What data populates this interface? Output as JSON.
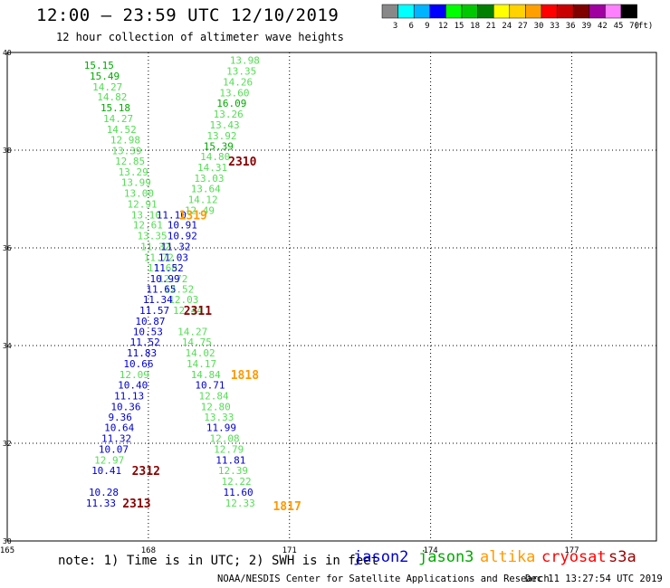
{
  "title": "12:00 – 23:59 UTC 12/10/2019",
  "subtitle": "12 hour collection of altimeter wave heights",
  "colorbar": {
    "labels": [
      "3",
      "6",
      "9",
      "12",
      "15",
      "18",
      "21",
      "24",
      "27",
      "30",
      "33",
      "36",
      "39",
      "42",
      "45",
      "70"
    ],
    "unit": "(ft)",
    "colors": [
      "#888888",
      "#00ffff",
      "#00b4ff",
      "#0000ff",
      "#00ff00",
      "#00c800",
      "#008000",
      "#ffff00",
      "#ffd200",
      "#ffa000",
      "#ff0000",
      "#c80000",
      "#800000",
      "#a000a0",
      "#ff80ff",
      "#000000"
    ]
  },
  "map": {
    "lon_ticks": [
      "165",
      "168",
      "171",
      "174",
      "177"
    ],
    "lat_ticks": [
      "40",
      "38",
      "36",
      "34",
      "32",
      "30"
    ]
  },
  "colors": {
    "jason2": "#0000cc",
    "jason3": "#00aa00",
    "altika": "#ff9900",
    "cryosat": "#ff0000",
    "s3a": "#990000",
    "green_light": "#55dd55",
    "green_dark": "#00aa00",
    "blue": "#0000cc",
    "orange": "#ff9900",
    "maroon": "#880000"
  },
  "note": "note: 1) Time is in UTC; 2) SWH is in feet",
  "legend": {
    "jason2": "jason2",
    "jason3": "jason3",
    "altika": "altika",
    "cryosat": "cryosat",
    "s3a": "s3a"
  },
  "footer": {
    "center": "NOAA/NESDIS Center for Satellite Applications and Research",
    "date": "Dec 11 13:27:54 UTC 2019"
  },
  "observations": [
    {
      "t": "15.15",
      "lon": 166.95,
      "lat": 39.74,
      "c": "green_dark"
    },
    {
      "t": "15.49",
      "lon": 167.07,
      "lat": 39.52,
      "c": "green_dark"
    },
    {
      "t": "14.27",
      "lon": 167.13,
      "lat": 39.3,
      "c": "green_light"
    },
    {
      "t": "14.82",
      "lon": 167.23,
      "lat": 39.09,
      "c": "green_light"
    },
    {
      "t": "15.18",
      "lon": 167.3,
      "lat": 38.87,
      "c": "green_dark"
    },
    {
      "t": "14.27",
      "lon": 167.36,
      "lat": 38.65,
      "c": "green_light"
    },
    {
      "t": "14.52",
      "lon": 167.43,
      "lat": 38.43,
      "c": "green_light"
    },
    {
      "t": "12.98",
      "lon": 167.51,
      "lat": 38.21,
      "c": "green_light"
    },
    {
      "t": "13.39",
      "lon": 167.54,
      "lat": 37.99,
      "c": "green_light"
    },
    {
      "t": "12.85",
      "lon": 167.61,
      "lat": 37.78,
      "c": "green_light"
    },
    {
      "t": "13.29",
      "lon": 167.68,
      "lat": 37.56,
      "c": "green_light"
    },
    {
      "t": "13.99",
      "lon": 167.74,
      "lat": 37.34,
      "c": "green_light"
    },
    {
      "t": "13.00",
      "lon": 167.8,
      "lat": 37.12,
      "c": "green_light"
    },
    {
      "t": "12.91",
      "lon": 167.87,
      "lat": 36.9,
      "c": "green_light"
    },
    {
      "t": "13.10",
      "lon": 167.95,
      "lat": 36.68,
      "c": "green_light"
    },
    {
      "t": "12.61",
      "lon": 167.99,
      "lat": 36.47,
      "c": "green_light"
    },
    {
      "t": "13.35",
      "lon": 168.08,
      "lat": 36.25,
      "c": "green_light"
    },
    {
      "t": "11.32",
      "lon": 168.15,
      "lat": 36.03,
      "c": "green_light"
    },
    {
      "t": "11.72",
      "lon": 168.22,
      "lat": 35.81,
      "c": "green_light"
    },
    {
      "t": "11.68",
      "lon": 168.3,
      "lat": 35.59,
      "c": "green_light"
    },
    {
      "t": "12.72",
      "lon": 168.52,
      "lat": 35.37,
      "c": "green_light"
    },
    {
      "t": "12.52",
      "lon": 168.65,
      "lat": 35.16,
      "c": "green_light"
    },
    {
      "t": "12.03",
      "lon": 168.75,
      "lat": 34.94,
      "c": "green_light"
    },
    {
      "t": "12.44",
      "lon": 168.84,
      "lat": 34.72,
      "c": "green_light"
    },
    {
      "t": "14.27",
      "lon": 168.94,
      "lat": 34.29,
      "c": "green_light"
    },
    {
      "t": "14.75",
      "lon": 169.03,
      "lat": 34.07,
      "c": "green_light"
    },
    {
      "t": "14.02",
      "lon": 169.1,
      "lat": 33.85,
      "c": "green_light"
    },
    {
      "t": "14.17",
      "lon": 169.13,
      "lat": 33.63,
      "c": "green_light"
    },
    {
      "t": "14.84",
      "lon": 169.22,
      "lat": 33.41,
      "c": "green_light"
    },
    {
      "t": "12.84",
      "lon": 169.39,
      "lat": 32.97,
      "c": "green_light"
    },
    {
      "t": "12.80",
      "lon": 169.43,
      "lat": 32.75,
      "c": "green_light"
    },
    {
      "t": "13.33",
      "lon": 169.5,
      "lat": 32.54,
      "c": "green_light"
    },
    {
      "t": "12.08",
      "lon": 169.62,
      "lat": 32.1,
      "c": "green_light"
    },
    {
      "t": "12.79",
      "lon": 169.71,
      "lat": 31.88,
      "c": "green_light"
    },
    {
      "t": "12.39",
      "lon": 169.8,
      "lat": 31.44,
      "c": "green_light"
    },
    {
      "t": "12.22",
      "lon": 169.87,
      "lat": 31.22,
      "c": "green_light"
    },
    {
      "t": "12.33",
      "lon": 169.95,
      "lat": 30.78,
      "c": "green_light"
    },
    {
      "t": "13.98",
      "lon": 170.05,
      "lat": 39.84,
      "c": "green_light"
    },
    {
      "t": "13.35",
      "lon": 169.98,
      "lat": 39.62,
      "c": "green_light"
    },
    {
      "t": "14.26",
      "lon": 169.9,
      "lat": 39.4,
      "c": "green_light"
    },
    {
      "t": "13.60",
      "lon": 169.83,
      "lat": 39.18,
      "c": "green_light"
    },
    {
      "t": "16.09",
      "lon": 169.77,
      "lat": 38.96,
      "c": "green_dark"
    },
    {
      "t": "13.26",
      "lon": 169.7,
      "lat": 38.74,
      "c": "green_light"
    },
    {
      "t": "13.43",
      "lon": 169.62,
      "lat": 38.52,
      "c": "green_light"
    },
    {
      "t": "13.92",
      "lon": 169.56,
      "lat": 38.3,
      "c": "green_light"
    },
    {
      "t": "15.39",
      "lon": 169.49,
      "lat": 38.08,
      "c": "green_dark"
    },
    {
      "t": "14.80",
      "lon": 169.42,
      "lat": 37.87,
      "c": "green_light"
    },
    {
      "t": "14.31",
      "lon": 169.36,
      "lat": 37.65,
      "c": "green_light"
    },
    {
      "t": "13.03",
      "lon": 169.29,
      "lat": 37.43,
      "c": "green_light"
    },
    {
      "t": "13.64",
      "lon": 169.22,
      "lat": 37.21,
      "c": "green_light"
    },
    {
      "t": "14.12",
      "lon": 169.16,
      "lat": 36.99,
      "c": "green_light"
    },
    {
      "t": "12.49",
      "lon": 169.09,
      "lat": 36.77,
      "c": "green_light"
    },
    {
      "t": "11.10",
      "lon": 168.49,
      "lat": 36.68,
      "c": "blue"
    },
    {
      "t": "10.91",
      "lon": 168.72,
      "lat": 36.47,
      "c": "blue"
    },
    {
      "t": "10.92",
      "lon": 168.72,
      "lat": 36.25,
      "c": "blue"
    },
    {
      "t": "11.32",
      "lon": 168.58,
      "lat": 36.03,
      "c": "blue"
    },
    {
      "t": "11.03",
      "lon": 168.53,
      "lat": 35.81,
      "c": "blue"
    },
    {
      "t": "11.52",
      "lon": 168.43,
      "lat": 35.59,
      "c": "blue"
    },
    {
      "t": "10.99",
      "lon": 168.35,
      "lat": 35.37,
      "c": "blue"
    },
    {
      "t": "11.65",
      "lon": 168.27,
      "lat": 35.16,
      "c": "blue"
    },
    {
      "t": "11.34",
      "lon": 168.2,
      "lat": 34.94,
      "c": "blue"
    },
    {
      "t": "11.57",
      "lon": 168.13,
      "lat": 34.72,
      "c": "blue"
    },
    {
      "t": "10.87",
      "lon": 168.04,
      "lat": 34.5,
      "c": "blue"
    },
    {
      "t": "10.53",
      "lon": 167.99,
      "lat": 34.29,
      "c": "blue"
    },
    {
      "t": "11.52",
      "lon": 167.93,
      "lat": 34.07,
      "c": "blue"
    },
    {
      "t": "11.83",
      "lon": 167.86,
      "lat": 33.85,
      "c": "blue"
    },
    {
      "t": "10.66",
      "lon": 167.79,
      "lat": 33.63,
      "c": "blue"
    },
    {
      "t": "12.09",
      "lon": 167.7,
      "lat": 33.41,
      "c": "green_light"
    },
    {
      "t": "10.40",
      "lon": 167.67,
      "lat": 33.19,
      "c": "blue"
    },
    {
      "t": "11.13",
      "lon": 167.59,
      "lat": 32.97,
      "c": "blue"
    },
    {
      "t": "10.36",
      "lon": 167.52,
      "lat": 32.75,
      "c": "blue"
    },
    {
      "t": "9.36",
      "lon": 167.4,
      "lat": 32.54,
      "c": "blue"
    },
    {
      "t": "10.64",
      "lon": 167.38,
      "lat": 32.32,
      "c": "blue"
    },
    {
      "t": "11.32",
      "lon": 167.32,
      "lat": 32.1,
      "c": "blue"
    },
    {
      "t": "10.07",
      "lon": 167.26,
      "lat": 31.88,
      "c": "blue"
    },
    {
      "t": "12.97",
      "lon": 167.17,
      "lat": 31.66,
      "c": "green_light"
    },
    {
      "t": "10.41",
      "lon": 167.11,
      "lat": 31.44,
      "c": "blue"
    },
    {
      "t": "10.28",
      "lon": 167.05,
      "lat": 31.0,
      "c": "blue"
    },
    {
      "t": "11.33",
      "lon": 166.99,
      "lat": 30.78,
      "c": "blue"
    },
    {
      "t": "10.71",
      "lon": 169.31,
      "lat": 33.19,
      "c": "blue"
    },
    {
      "t": "11.99",
      "lon": 169.55,
      "lat": 32.32,
      "c": "blue"
    },
    {
      "t": "11.81",
      "lon": 169.75,
      "lat": 31.66,
      "c": "blue"
    },
    {
      "t": "11.60",
      "lon": 169.91,
      "lat": 31.0,
      "c": "blue"
    }
  ],
  "labels": [
    {
      "t": "2310",
      "lon": 170.0,
      "lat": 37.78,
      "c": "maroon"
    },
    {
      "t": "1319",
      "lon": 168.95,
      "lat": 36.68,
      "c": "orange"
    },
    {
      "t": "2311",
      "lon": 169.05,
      "lat": 34.72,
      "c": "maroon"
    },
    {
      "t": "1818",
      "lon": 170.05,
      "lat": 33.41,
      "c": "orange"
    },
    {
      "t": "2312",
      "lon": 167.95,
      "lat": 31.44,
      "c": "maroon"
    },
    {
      "t": "2313",
      "lon": 167.75,
      "lat": 30.78,
      "c": "maroon"
    },
    {
      "t": "1817",
      "lon": 170.95,
      "lat": 30.72,
      "c": "orange"
    }
  ]
}
